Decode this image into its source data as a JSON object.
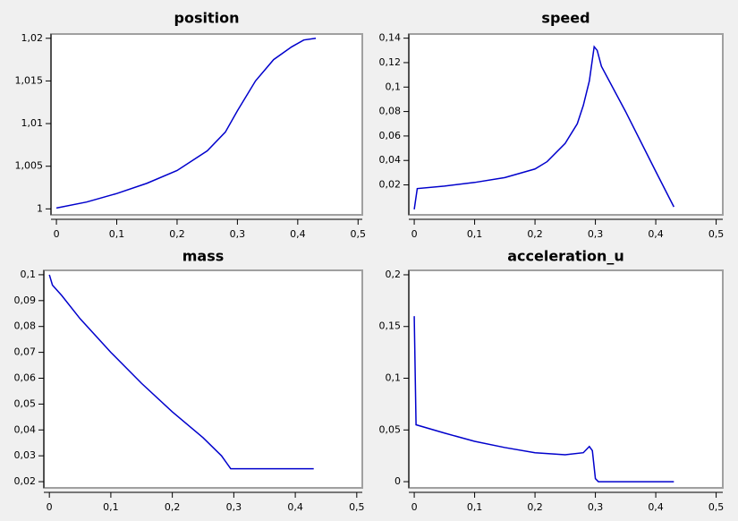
{
  "chart_data": [
    {
      "type": "line",
      "title": "position",
      "x": [
        0,
        0.05,
        0.1,
        0.15,
        0.2,
        0.25,
        0.28,
        0.3,
        0.33,
        0.36,
        0.39,
        0.41,
        0.43
      ],
      "series": [
        {
          "name": "position",
          "color": "#0000cc",
          "values": [
            1.0001,
            1.0008,
            1.0018,
            1.003,
            1.0045,
            1.0068,
            1.009,
            1.0115,
            1.015,
            1.0175,
            1.019,
            1.0198,
            1.02
          ]
        }
      ],
      "xlim": [
        -0.009,
        0.507
      ],
      "ylim": [
        0.9993,
        1.0205
      ],
      "xticks": [
        0,
        {
          "value": 0.1,
          "label": "0,1"
        },
        {
          "value": 0.2,
          "label": "0,2"
        },
        {
          "value": 0.3,
          "label": "0,3"
        },
        {
          "value": 0.4,
          "label": "0,4"
        },
        {
          "value": 0.5,
          "label": "0,5"
        }
      ],
      "yticks": [
        1,
        {
          "value": 1.005,
          "label": "1,005"
        },
        {
          "value": 1.01,
          "label": "1,01"
        },
        {
          "value": 1.015,
          "label": "1,015"
        },
        {
          "value": 1.02,
          "label": "1,02"
        }
      ]
    },
    {
      "type": "line",
      "title": "speed",
      "x": [
        0,
        0.005,
        0.05,
        0.1,
        0.15,
        0.2,
        0.22,
        0.25,
        0.27,
        0.28,
        0.29,
        0.298,
        0.303,
        0.31,
        0.35,
        0.4,
        0.43
      ],
      "series": [
        {
          "name": "speed",
          "color": "#0000cc",
          "values": [
            0.0,
            0.017,
            0.019,
            0.022,
            0.026,
            0.033,
            0.039,
            0.054,
            0.07,
            0.085,
            0.105,
            0.133,
            0.13,
            0.117,
            0.08,
            0.031,
            0.002
          ]
        }
      ],
      "xlim": [
        -0.009,
        0.511
      ],
      "ylim": [
        -0.0045,
        0.1434
      ],
      "xticks": [
        0,
        {
          "value": 0.1,
          "label": "0,1"
        },
        {
          "value": 0.2,
          "label": "0,2"
        },
        {
          "value": 0.3,
          "label": "0,3"
        },
        {
          "value": 0.4,
          "label": "0,4"
        },
        {
          "value": 0.5,
          "label": "0,5"
        }
      ],
      "yticks": [
        {
          "value": 0.02,
          "label": "0,02"
        },
        {
          "value": 0.04,
          "label": "0,04"
        },
        {
          "value": 0.06,
          "label": "0,06"
        },
        {
          "value": 0.08,
          "label": "0,08"
        },
        {
          "value": 0.1,
          "label": "0,1"
        },
        {
          "value": 0.12,
          "label": "0,12"
        },
        {
          "value": 0.14,
          "label": "0,14"
        }
      ]
    },
    {
      "type": "line",
      "title": "mass",
      "x": [
        0,
        0.005,
        0.02,
        0.05,
        0.1,
        0.15,
        0.2,
        0.25,
        0.28,
        0.295,
        0.43
      ],
      "series": [
        {
          "name": "mass",
          "color": "#0000cc",
          "values": [
            0.1,
            0.096,
            0.092,
            0.083,
            0.07,
            0.058,
            0.047,
            0.037,
            0.03,
            0.025,
            0.025
          ]
        }
      ],
      "xlim": [
        -0.009,
        0.509
      ],
      "ylim": [
        0.0176,
        0.1017
      ],
      "xticks": [
        0,
        {
          "value": 0.1,
          "label": "0,1"
        },
        {
          "value": 0.2,
          "label": "0,2"
        },
        {
          "value": 0.3,
          "label": "0,3"
        },
        {
          "value": 0.4,
          "label": "0,4"
        },
        {
          "value": 0.5,
          "label": "0,5"
        }
      ],
      "yticks": [
        {
          "value": 0.02,
          "label": "0,02"
        },
        {
          "value": 0.03,
          "label": "0,03"
        },
        {
          "value": 0.04,
          "label": "0,04"
        },
        {
          "value": 0.05,
          "label": "0,05"
        },
        {
          "value": 0.06,
          "label": "0,06"
        },
        {
          "value": 0.07,
          "label": "0,07"
        },
        {
          "value": 0.08,
          "label": "0,08"
        },
        {
          "value": 0.09,
          "label": "0,09"
        },
        {
          "value": 0.1,
          "label": "0,1"
        }
      ]
    },
    {
      "type": "line",
      "title": "acceleration_u",
      "x": [
        0,
        0.003,
        0.05,
        0.1,
        0.15,
        0.2,
        0.25,
        0.28,
        0.29,
        0.295,
        0.3,
        0.305,
        0.43
      ],
      "series": [
        {
          "name": "acceleration_u",
          "color": "#0000cc",
          "values": [
            0.16,
            0.055,
            0.047,
            0.039,
            0.033,
            0.028,
            0.026,
            0.028,
            0.034,
            0.03,
            0.003,
            0,
            0
          ]
        }
      ],
      "xlim": [
        -0.009,
        0.511
      ],
      "ylim": [
        -0.006,
        0.2043
      ],
      "xticks": [
        0,
        {
          "value": 0.1,
          "label": "0,1"
        },
        {
          "value": 0.2,
          "label": "0,2"
        },
        {
          "value": 0.3,
          "label": "0,3"
        },
        {
          "value": 0.4,
          "label": "0,4"
        },
        {
          "value": 0.5,
          "label": "0,5"
        }
      ],
      "yticks": [
        0,
        {
          "value": 0.05,
          "label": "0,05"
        },
        {
          "value": 0.1,
          "label": "0,1"
        },
        {
          "value": 0.15,
          "label": "0,15"
        },
        {
          "value": 0.2,
          "label": "0,2"
        }
      ]
    }
  ]
}
